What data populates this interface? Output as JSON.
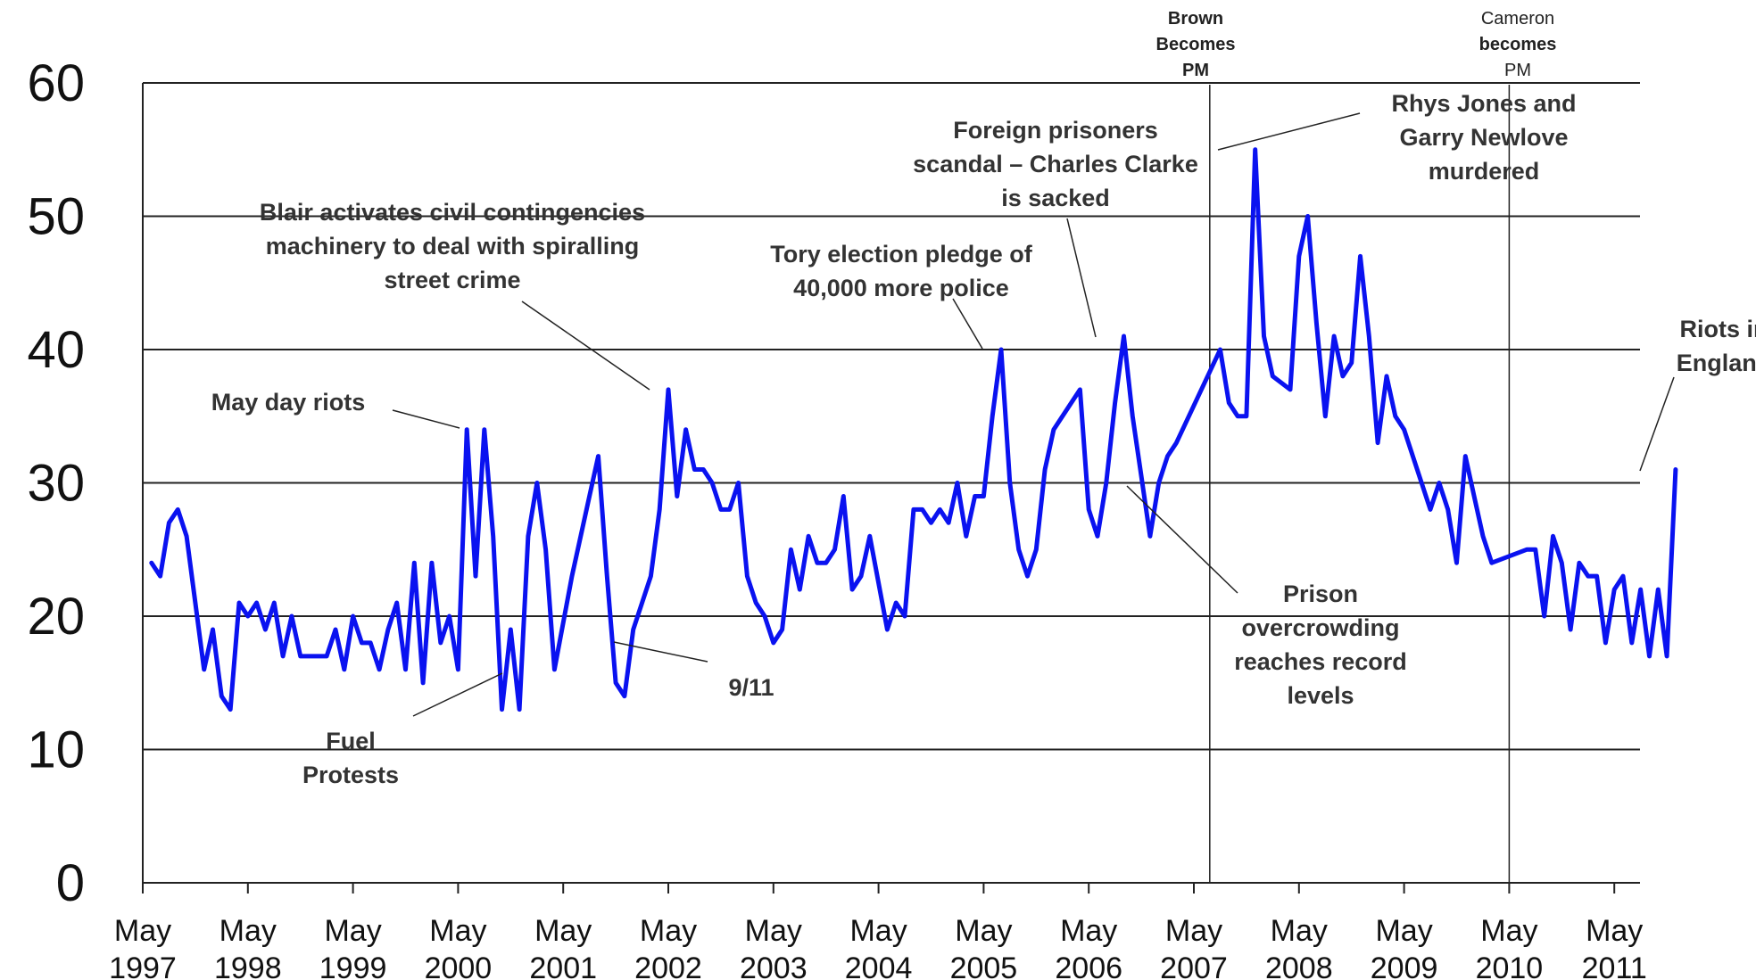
{
  "chart_data": {
    "type": "line",
    "title": "",
    "xlabel": "",
    "ylabel": "",
    "ylim": [
      0,
      60
    ],
    "yticks": [
      0,
      10,
      20,
      30,
      40,
      50,
      60
    ],
    "grid": "horizontal",
    "x_tick_labels": [
      {
        "month": "May",
        "year": "1997"
      },
      {
        "month": "May",
        "year": "1998"
      },
      {
        "month": "May",
        "year": "1999"
      },
      {
        "month": "May",
        "year": "2000"
      },
      {
        "month": "May",
        "year": "2001"
      },
      {
        "month": "May",
        "year": "2002"
      },
      {
        "month": "May",
        "year": "2003"
      },
      {
        "month": "May",
        "year": "2004"
      },
      {
        "month": "May",
        "year": "2005"
      },
      {
        "month": "May",
        "year": "2006"
      },
      {
        "month": "May",
        "year": "2007"
      },
      {
        "month": "May",
        "year": "2008"
      },
      {
        "month": "May",
        "year": "2009"
      },
      {
        "month": "May",
        "year": "2010"
      },
      {
        "month": "May",
        "year": "2011"
      }
    ],
    "series": [
      {
        "color": "#0a12f0",
        "points": [
          [
            "1997-06",
            24
          ],
          [
            "1997-07",
            23
          ],
          [
            "1997-08",
            27
          ],
          [
            "1997-09",
            28
          ],
          [
            "1997-10",
            26
          ],
          [
            "1997-11",
            21
          ],
          [
            "1997-12",
            16
          ],
          [
            "1998-01",
            19
          ],
          [
            "1998-02",
            14
          ],
          [
            "1998-03",
            13
          ],
          [
            "1998-04",
            21
          ],
          [
            "1998-05",
            20
          ],
          [
            "1998-06",
            21
          ],
          [
            "1998-07",
            19
          ],
          [
            "1998-08",
            21
          ],
          [
            "1998-09",
            17
          ],
          [
            "1998-10",
            20
          ],
          [
            "1998-11",
            17
          ],
          [
            "1998-12",
            17
          ],
          [
            "1999-02",
            17
          ],
          [
            "1999-03",
            19
          ],
          [
            "1999-04",
            16
          ],
          [
            "1999-05",
            20
          ],
          [
            "1999-06",
            18
          ],
          [
            "1999-07",
            18
          ],
          [
            "1999-08",
            16
          ],
          [
            "1999-09",
            19
          ],
          [
            "1999-10",
            21
          ],
          [
            "1999-11",
            16
          ],
          [
            "1999-12",
            24
          ],
          [
            "2000-01",
            15
          ],
          [
            "2000-02",
            24
          ],
          [
            "2000-03",
            18
          ],
          [
            "2000-04",
            20
          ],
          [
            "2000-05",
            16
          ],
          [
            "2000-06",
            34
          ],
          [
            "2000-07",
            23
          ],
          [
            "2000-08",
            34
          ],
          [
            "2000-09",
            26
          ],
          [
            "2000-10",
            13
          ],
          [
            "2000-11",
            19
          ],
          [
            "2000-12",
            13
          ],
          [
            "2001-01",
            26
          ],
          [
            "2001-02",
            30
          ],
          [
            "2001-03",
            25
          ],
          [
            "2001-04",
            16
          ],
          [
            "2001-06",
            23
          ],
          [
            "2001-08",
            29
          ],
          [
            "2001-09",
            32
          ],
          [
            "2001-10",
            23
          ],
          [
            "2001-11",
            15
          ],
          [
            "2001-12",
            14
          ],
          [
            "2002-01",
            19
          ],
          [
            "2002-03",
            23
          ],
          [
            "2002-04",
            28
          ],
          [
            "2002-05",
            37
          ],
          [
            "2002-06",
            29
          ],
          [
            "2002-07",
            34
          ],
          [
            "2002-08",
            31
          ],
          [
            "2002-09",
            31
          ],
          [
            "2002-10",
            30
          ],
          [
            "2002-11",
            28
          ],
          [
            "2002-12",
            28
          ],
          [
            "2003-01",
            30
          ],
          [
            "2003-02",
            23
          ],
          [
            "2003-03",
            21
          ],
          [
            "2003-04",
            20
          ],
          [
            "2003-05",
            18
          ],
          [
            "2003-06",
            19
          ],
          [
            "2003-07",
            25
          ],
          [
            "2003-08",
            22
          ],
          [
            "2003-09",
            26
          ],
          [
            "2003-10",
            24
          ],
          [
            "2003-11",
            24
          ],
          [
            "2003-12",
            25
          ],
          [
            "2004-01",
            29
          ],
          [
            "2004-02",
            22
          ],
          [
            "2004-03",
            23
          ],
          [
            "2004-04",
            26
          ],
          [
            "2004-06",
            19
          ],
          [
            "2004-07",
            21
          ],
          [
            "2004-08",
            20
          ],
          [
            "2004-09",
            28
          ],
          [
            "2004-10",
            28
          ],
          [
            "2004-11",
            27
          ],
          [
            "2004-12",
            28
          ],
          [
            "2005-01",
            27
          ],
          [
            "2005-02",
            30
          ],
          [
            "2005-03",
            26
          ],
          [
            "2005-04",
            29
          ],
          [
            "2005-05",
            29
          ],
          [
            "2005-06",
            35
          ],
          [
            "2005-07",
            40
          ],
          [
            "2005-08",
            30
          ],
          [
            "2005-09",
            25
          ],
          [
            "2005-10",
            23
          ],
          [
            "2005-11",
            25
          ],
          [
            "2005-12",
            31
          ],
          [
            "2006-01",
            34
          ],
          [
            "2006-03",
            36
          ],
          [
            "2006-04",
            37
          ],
          [
            "2006-05",
            28
          ],
          [
            "2006-06",
            26
          ],
          [
            "2006-07",
            30
          ],
          [
            "2006-08",
            36
          ],
          [
            "2006-09",
            41
          ],
          [
            "2006-10",
            35
          ],
          [
            "2006-12",
            26
          ],
          [
            "2007-01",
            30
          ],
          [
            "2007-02",
            32
          ],
          [
            "2007-03",
            33
          ],
          [
            "2007-08",
            40
          ],
          [
            "2007-09",
            36
          ],
          [
            "2007-10",
            35
          ],
          [
            "2007-11",
            35
          ],
          [
            "2007-12",
            55
          ],
          [
            "2008-01",
            41
          ],
          [
            "2008-02",
            38
          ],
          [
            "2008-04",
            37
          ],
          [
            "2008-05",
            47
          ],
          [
            "2008-06",
            50
          ],
          [
            "2008-07",
            42
          ],
          [
            "2008-08",
            35
          ],
          [
            "2008-09",
            41
          ],
          [
            "2008-10",
            38
          ],
          [
            "2008-11",
            39
          ],
          [
            "2008-12",
            47
          ],
          [
            "2009-01",
            41
          ],
          [
            "2009-02",
            33
          ],
          [
            "2009-03",
            38
          ],
          [
            "2009-04",
            35
          ],
          [
            "2009-05",
            34
          ],
          [
            "2009-06",
            32
          ],
          [
            "2009-08",
            28
          ],
          [
            "2009-09",
            30
          ],
          [
            "2009-10",
            28
          ],
          [
            "2009-11",
            24
          ],
          [
            "2009-12",
            32
          ],
          [
            "2010-01",
            29
          ],
          [
            "2010-02",
            26
          ],
          [
            "2010-03",
            24
          ],
          [
            "2010-07",
            25
          ],
          [
            "2010-08",
            25
          ],
          [
            "2010-09",
            20
          ],
          [
            "2010-10",
            26
          ],
          [
            "2010-11",
            24
          ],
          [
            "2010-12",
            19
          ],
          [
            "2011-01",
            24
          ],
          [
            "2011-02",
            23
          ],
          [
            "2011-03",
            23
          ],
          [
            "2011-04",
            18
          ],
          [
            "2011-05",
            22
          ],
          [
            "2011-06",
            23
          ],
          [
            "2011-07",
            18
          ],
          [
            "2011-08",
            22
          ],
          [
            "2011-09",
            17
          ],
          [
            "2011-10",
            22
          ],
          [
            "2011-11",
            17
          ],
          [
            "2011-12",
            31
          ]
        ]
      }
    ],
    "reference_lines": [
      {
        "date": "2007-06",
        "label_lines": [
          {
            "text": "Brown",
            "bold": true
          },
          {
            "text": "Becomes",
            "bold": true
          },
          {
            "text": "PM",
            "bold": true
          }
        ]
      },
      {
        "date": "2010-05",
        "label_lines": [
          {
            "text": "Cameron",
            "bold": false
          },
          {
            "text": "becomes",
            "bold": true
          },
          {
            "text": "PM",
            "bold": false
          }
        ]
      }
    ],
    "annotations": [
      {
        "id": "may-day",
        "lines": [
          "May day riots"
        ],
        "target": "2000-06"
      },
      {
        "id": "fuel",
        "lines": [
          "Fuel",
          "Protests"
        ],
        "target": "2000-11"
      },
      {
        "id": "blair",
        "lines": [
          "Blair activates civil contingencies",
          "machinery to deal with spiralling",
          "street crime"
        ],
        "target": "2002-05"
      },
      {
        "id": "nine-eleven",
        "lines": [
          "9/11"
        ],
        "target": "2002-01"
      },
      {
        "id": "tory",
        "lines": [
          "Tory election pledge of",
          "40,000 more police"
        ],
        "target": "2005-07"
      },
      {
        "id": "foreign",
        "lines": [
          "Foreign prisoners",
          "scandal – Charles Clarke",
          "is sacked"
        ],
        "target": "2006-09"
      },
      {
        "id": "prison",
        "lines": [
          "Prison",
          "overcrowding",
          "reaches record",
          "levels"
        ],
        "target": "2007-01"
      },
      {
        "id": "rhys",
        "lines": [
          "Rhys Jones and",
          "Garry Newlove",
          "murdered"
        ],
        "target": "2007-12"
      },
      {
        "id": "riots",
        "lines": [
          "Riots in",
          "England"
        ],
        "target": "2011-12"
      }
    ]
  }
}
